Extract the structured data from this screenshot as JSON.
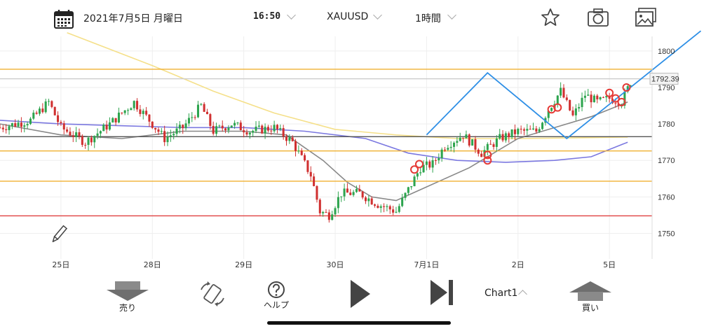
{
  "header": {
    "date": "2021年7月5日 月曜日",
    "time": "16:50",
    "symbol": "XAUUSD",
    "timeframe": "1時間",
    "icons": [
      "calendar-icon",
      "star-icon",
      "camera-icon",
      "gallery-icon"
    ]
  },
  "chart_data": {
    "type": "candlestick",
    "symbol": "XAUUSD",
    "timeframe": "1時間",
    "current_price": "1792.39",
    "ylim": [
      1743,
      1804
    ],
    "y_ticks": [
      1750,
      1760,
      1770,
      1780,
      1790,
      1800
    ],
    "x_ticks": [
      "25日",
      "28日",
      "29日",
      "30日",
      "7月1日",
      "2日",
      "5日"
    ],
    "x_tick_positions": [
      5,
      20,
      35,
      50,
      65,
      80,
      95
    ],
    "x_range": [
      -5,
      102
    ],
    "horizontal_lines": [
      {
        "price": 1795,
        "color": "#f0b030"
      },
      {
        "price": 1792.39,
        "color": "#cccccc"
      },
      {
        "price": 1776.5,
        "color": "#555555"
      },
      {
        "price": 1772.6,
        "color": "#f0b030"
      },
      {
        "price": 1764.3,
        "color": "#f0b030"
      },
      {
        "price": 1754.8,
        "color": "#e04040"
      }
    ],
    "trend_lines": [
      {
        "color": "#2e8fe6",
        "points": [
          [
            65,
            1777
          ],
          [
            75,
            1794
          ],
          [
            88,
            1776
          ],
          [
            110,
            1805.5
          ]
        ]
      }
    ],
    "moving_averages": [
      {
        "color": "#f5e08a",
        "points": [
          [
            6,
            1805
          ],
          [
            20,
            1796
          ],
          [
            30,
            1789
          ],
          [
            40,
            1783
          ],
          [
            50,
            1778.5
          ],
          [
            60,
            1777
          ],
          [
            70,
            1776
          ],
          [
            80,
            1776
          ],
          [
            90,
            1776.2
          ],
          [
            98,
            1776.4
          ]
        ]
      },
      {
        "color": "#7b78e0",
        "points": [
          [
            -5,
            1781
          ],
          [
            5,
            1780
          ],
          [
            15,
            1779.5
          ],
          [
            25,
            1779
          ],
          [
            35,
            1779
          ],
          [
            45,
            1778
          ],
          [
            55,
            1776
          ],
          [
            62,
            1772
          ],
          [
            70,
            1770
          ],
          [
            78,
            1769.5
          ],
          [
            86,
            1770
          ],
          [
            92,
            1771
          ],
          [
            98,
            1775
          ]
        ]
      },
      {
        "color": "#888888",
        "points": [
          [
            -5,
            1780
          ],
          [
            5,
            1777
          ],
          [
            15,
            1776
          ],
          [
            25,
            1778
          ],
          [
            35,
            1778
          ],
          [
            42,
            1777
          ],
          [
            48,
            1770
          ],
          [
            52,
            1764
          ],
          [
            56,
            1760
          ],
          [
            60,
            1759
          ],
          [
            64,
            1762
          ],
          [
            68,
            1765
          ],
          [
            72,
            1768
          ],
          [
            76,
            1772
          ],
          [
            80,
            1776
          ],
          [
            84,
            1778
          ],
          [
            88,
            1780
          ],
          [
            92,
            1782
          ],
          [
            98,
            1786
          ]
        ]
      }
    ],
    "anchors": [
      [
        -5,
        1779
      ],
      [
        0,
        1781
      ],
      [
        3,
        1786
      ],
      [
        5,
        1779
      ],
      [
        9,
        1775
      ],
      [
        13,
        1780
      ],
      [
        17,
        1786
      ],
      [
        20,
        1780
      ],
      [
        22,
        1776
      ],
      [
        25,
        1779
      ],
      [
        28,
        1785
      ],
      [
        30,
        1778
      ],
      [
        33,
        1780
      ],
      [
        36,
        1778
      ],
      [
        40,
        1779
      ],
      [
        43,
        1775
      ],
      [
        46,
        1766
      ],
      [
        47.5,
        1756
      ],
      [
        49,
        1755
      ],
      [
        51,
        1761
      ],
      [
        54,
        1761
      ],
      [
        57,
        1758
      ],
      [
        60,
        1756
      ],
      [
        62,
        1762
      ],
      [
        64,
        1768
      ],
      [
        66,
        1769
      ],
      [
        68,
        1774
      ],
      [
        71,
        1777
      ],
      [
        74,
        1772
      ],
      [
        77,
        1776
      ],
      [
        80,
        1778
      ],
      [
        83,
        1778
      ],
      [
        85,
        1784
      ],
      [
        87,
        1789
      ],
      [
        89,
        1782
      ],
      [
        91,
        1788
      ],
      [
        93,
        1786
      ],
      [
        95,
        1787
      ],
      [
        97,
        1786
      ],
      [
        98.5,
        1791.5
      ]
    ],
    "signal_circles": [
      [
        63,
        1767.5
      ],
      [
        63.8,
        1769
      ],
      [
        75,
        1770
      ],
      [
        75,
        1771.5
      ],
      [
        85.5,
        1784
      ],
      [
        86.5,
        1784.5
      ],
      [
        95,
        1788.5
      ],
      [
        96,
        1787
      ],
      [
        97,
        1786
      ],
      [
        97.8,
        1790
      ]
    ]
  },
  "footer": {
    "sell_label": "売り",
    "help_label": "ヘルプ",
    "chart_name": "Chart1",
    "buy_label": "買い"
  }
}
